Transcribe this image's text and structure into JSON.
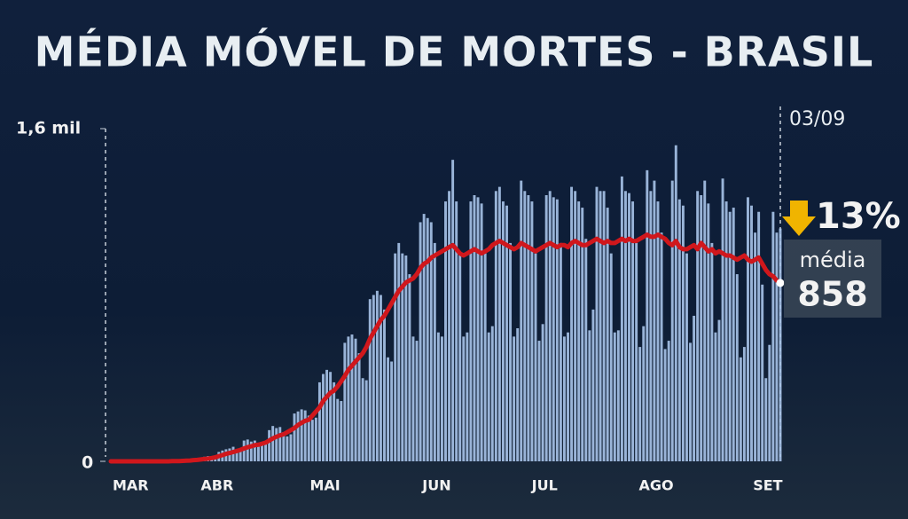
{
  "chart_data": {
    "type": "bar",
    "title": "MÉDIA MÓVEL DE MORTES - BRASIL",
    "categories": [
      "MAR",
      null,
      null,
      null,
      null,
      null,
      null,
      null,
      null,
      null,
      null,
      null,
      null,
      null,
      null,
      null,
      null,
      null,
      null,
      null,
      null,
      null,
      null,
      null,
      null,
      null,
      null,
      null,
      null,
      null,
      null,
      "ABR",
      null,
      null,
      null,
      null,
      null,
      null,
      null,
      null,
      null,
      null,
      null,
      null,
      null,
      null,
      null,
      null,
      null,
      null,
      null,
      null,
      null,
      null,
      null,
      null,
      null,
      null,
      null,
      null,
      null,
      "MAI",
      null,
      null,
      null,
      null,
      null,
      null,
      null,
      null,
      null,
      null,
      null,
      null,
      null,
      null,
      null,
      null,
      null,
      null,
      null,
      null,
      null,
      null,
      null,
      null,
      null,
      null,
      null,
      null,
      null,
      null,
      "JUN",
      null,
      null,
      null,
      null,
      null,
      null,
      null,
      null,
      null,
      null,
      null,
      null,
      null,
      null,
      null,
      null,
      null,
      null,
      null,
      null,
      null,
      null,
      null,
      null,
      null,
      null,
      null,
      null,
      null,
      "JUL",
      null,
      null,
      null,
      null,
      null,
      null,
      null,
      null,
      null,
      null,
      null,
      null,
      null,
      null,
      null,
      null,
      null,
      null,
      null,
      null,
      null,
      null,
      null,
      null,
      null,
      null,
      null,
      null,
      null,
      null,
      "AGO",
      null,
      null,
      null,
      null,
      null,
      null,
      null,
      null,
      null,
      null,
      null,
      null,
      null,
      null,
      null,
      null,
      null,
      null,
      null,
      null,
      null,
      null,
      null,
      null,
      null,
      null,
      null,
      null,
      null,
      null,
      "SET",
      null,
      null
    ],
    "series": [
      {
        "color": "#a8c4ea",
        "values": [
          0,
          0,
          0,
          0,
          0,
          0,
          0,
          0,
          0,
          0,
          0,
          0,
          0,
          0,
          0,
          0,
          1,
          3,
          4,
          3,
          7,
          7,
          9,
          12,
          14,
          18,
          22,
          25,
          22,
          25,
          45,
          52,
          58,
          62,
          70,
          50,
          55,
          100,
          105,
          95,
          100,
          85,
          80,
          90,
          150,
          170,
          160,
          165,
          140,
          120,
          130,
          230,
          240,
          250,
          245,
          220,
          200,
          210,
          380,
          420,
          440,
          430,
          380,
          300,
          290,
          570,
          600,
          610,
          590,
          520,
          400,
          390,
          780,
          800,
          820,
          800,
          730,
          500,
          480,
          1000,
          1050,
          1000,
          990,
          900,
          600,
          580,
          1150,
          1190,
          1170,
          1150,
          1050,
          620,
          600,
          1250,
          1300,
          1450,
          1250,
          1000,
          600,
          620,
          1250,
          1280,
          1270,
          1240,
          1000,
          620,
          650,
          1300,
          1320,
          1250,
          1230,
          1050,
          600,
          640,
          1350,
          1300,
          1280,
          1250,
          1000,
          580,
          660,
          1280,
          1300,
          1270,
          1260,
          1050,
          600,
          620,
          1320,
          1300,
          1250,
          1220,
          1070,
          630,
          730,
          1320,
          1300,
          1300,
          1220,
          1000,
          620,
          630,
          1370,
          1300,
          1290,
          1250,
          1050,
          550,
          650,
          1400,
          1300,
          1350,
          1250,
          1100,
          540,
          580,
          1350,
          1520,
          1260,
          1230,
          1000,
          570,
          700,
          1300,
          1280,
          1350,
          1240,
          1050,
          620,
          680,
          1360,
          1250,
          1200,
          1220,
          900,
          500,
          550,
          1270,
          1230,
          1100,
          1200,
          850,
          400,
          560,
          1200,
          1100,
          1120
        ]
      },
      {
        "color": "#d0171c",
        "values": [
          0,
          0,
          0,
          0,
          0,
          0,
          0,
          0,
          0,
          0,
          0,
          0,
          0,
          0,
          0,
          0,
          0,
          1,
          1,
          1,
          2,
          3,
          4,
          6,
          7,
          9,
          11,
          13,
          16,
          19,
          25,
          30,
          36,
          40,
          45,
          50,
          55,
          62,
          68,
          72,
          78,
          80,
          85,
          90,
          100,
          110,
          118,
          125,
          130,
          140,
          150,
          160,
          175,
          185,
          195,
          200,
          220,
          240,
          260,
          290,
          310,
          330,
          340,
          360,
          385,
          410,
          440,
          460,
          480,
          500,
          520,
          550,
          590,
          620,
          650,
          680,
          700,
          730,
          760,
          790,
          820,
          840,
          860,
          870,
          880,
          900,
          930,
          950,
          960,
          980,
          990,
          1000,
          1010,
          1020,
          1030,
          1040,
          1020,
          1000,
          990,
          1000,
          1010,
          1020,
          1010,
          1000,
          1010,
          1020,
          1040,
          1050,
          1060,
          1050,
          1040,
          1030,
          1020,
          1030,
          1050,
          1040,
          1030,
          1020,
          1010,
          1020,
          1030,
          1040,
          1050,
          1040,
          1030,
          1040,
          1040,
          1030,
          1050,
          1060,
          1050,
          1040,
          1040,
          1050,
          1060,
          1070,
          1060,
          1050,
          1060,
          1050,
          1050,
          1060,
          1070,
          1060,
          1070,
          1060,
          1060,
          1070,
          1080,
          1090,
          1080,
          1080,
          1090,
          1080,
          1070,
          1050,
          1040,
          1060,
          1030,
          1020,
          1020,
          1030,
          1040,
          1020,
          1050,
          1030,
          1010,
          1020,
          1000,
          1010,
          1000,
          990,
          990,
          980,
          970,
          980,
          990,
          970,
          960,
          970,
          980,
          950,
          920,
          900,
          890,
          870,
          858
        ]
      }
    ],
    "ylim": [
      0,
      1600
    ],
    "yticks": [
      0,
      {
        "value": 1600,
        "label": "1,6 mil"
      }
    ],
    "annotations": {
      "date": "03/09",
      "change": "13%",
      "label": "média"
    }
  }
}
